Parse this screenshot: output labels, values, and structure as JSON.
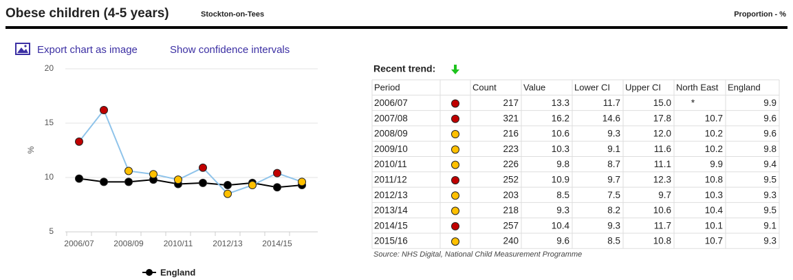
{
  "header": {
    "title": "Obese children (4-5 years)",
    "area": "Stockton-on-Tees",
    "unit": "Proportion - %"
  },
  "links": [
    "Export chart as image",
    "Show confidence intervals"
  ],
  "chart_data": {
    "type": "line",
    "ylabel": "%",
    "categories": [
      "2006/07",
      null,
      "2008/09",
      null,
      "2010/11",
      null,
      "2012/13",
      null,
      "2014/15",
      null
    ],
    "ylim": [
      5,
      20
    ],
    "yticks": [
      5,
      10,
      15,
      20
    ],
    "grid": true,
    "legend": "bottom",
    "series": [
      {
        "color": "#8ec3ea",
        "values": [
          13.3,
          16.2,
          10.6,
          10.3,
          9.8,
          10.9,
          8.5,
          9.3,
          10.4,
          9.6
        ],
        "point_colors": [
          "#c00000",
          "#c00000",
          "#ffc000",
          "#ffc000",
          "#ffc000",
          "#c00000",
          "#ffc000",
          "#ffc000",
          "#c00000",
          "#ffc000"
        ]
      },
      {
        "name": "England",
        "color": "#000000",
        "legend": true,
        "values": [
          9.9,
          9.6,
          9.6,
          9.8,
          9.4,
          9.5,
          9.3,
          9.5,
          9.1,
          9.3
        ]
      }
    ]
  },
  "table": {
    "trend_label": "Recent trend:",
    "columns": [
      "Period",
      "Count",
      "Value",
      "Lower CI",
      "Upper CI",
      "North East",
      "England"
    ],
    "rows": [
      [
        "2006/07",
        "217",
        "13.3",
        "11.7",
        "15.0",
        "*",
        "9.9"
      ],
      [
        "2007/08",
        "321",
        "16.2",
        "14.6",
        "17.8",
        "10.7",
        "9.6"
      ],
      [
        "2008/09",
        "216",
        "10.6",
        "9.3",
        "12.0",
        "10.2",
        "9.6"
      ],
      [
        "2009/10",
        "223",
        "10.3",
        "9.1",
        "11.6",
        "10.2",
        "9.8"
      ],
      [
        "2010/11",
        "226",
        "9.8",
        "8.7",
        "11.1",
        "9.9",
        "9.4"
      ],
      [
        "2011/12",
        "252",
        "10.9",
        "9.7",
        "12.3",
        "10.8",
        "9.5"
      ],
      [
        "2012/13",
        "203",
        "8.5",
        "7.5",
        "9.7",
        "10.3",
        "9.3"
      ],
      [
        "2013/14",
        "218",
        "9.3",
        "8.2",
        "10.6",
        "10.4",
        "9.5"
      ],
      [
        "2014/15",
        "257",
        "10.4",
        "9.3",
        "11.7",
        "10.1",
        "9.1"
      ],
      [
        "2015/16",
        "240",
        "9.6",
        "8.5",
        "10.8",
        "10.7",
        "9.3"
      ]
    ],
    "source": "Source: NHS Digital, National Child Measurement Programme"
  }
}
